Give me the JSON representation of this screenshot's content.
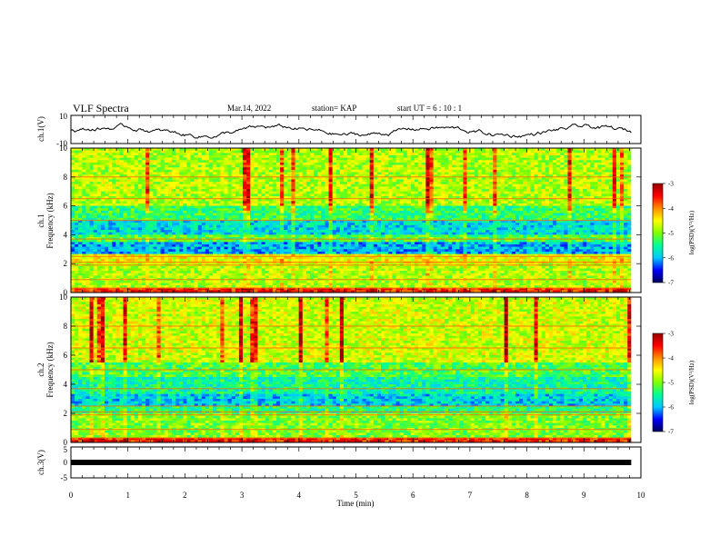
{
  "header": {
    "title": "VLF Spectra",
    "date": "Mar.14, 2022",
    "station": "station= KAP",
    "start_ut": "start  UT =   6  : 10 : 1"
  },
  "colors": {
    "colormap": [
      "#00005a",
      "#0000ff",
      "#00c8ff",
      "#00ff96",
      "#7dff00",
      "#ffff00",
      "#ff8c00",
      "#ff0000",
      "#960000"
    ],
    "trace": "#000000"
  },
  "chart_data": [
    {
      "type": "line",
      "name": "waveform-ch1",
      "ylabel": "ch.1(V)",
      "ylim": [
        -10,
        10
      ],
      "yticks": [
        "10",
        "-10"
      ],
      "xlim": [
        0,
        10
      ],
      "x_end": 9.83,
      "description_values": "noisy waveform oscillating roughly between -6 and +4 V"
    },
    {
      "type": "heatmap",
      "name": "spectrogram-ch1",
      "ylabel": "ch.1\nFrequency (kHz)",
      "ylabel_lines": [
        "ch.1",
        "Frequency (kHz)"
      ],
      "ylim": [
        0,
        10
      ],
      "yticks": [
        "0",
        "2",
        "4",
        "6",
        "8",
        "10"
      ],
      "xlim": [
        0,
        10
      ],
      "x_end": 9.83,
      "colorbar": {
        "label": "log(PSD)(V²/Hz)",
        "range": [
          -7,
          -3
        ],
        "ticks": [
          "-3",
          "-4",
          "-5",
          "-6",
          "-7"
        ]
      }
    },
    {
      "type": "heatmap",
      "name": "spectrogram-ch2",
      "ylabel": "ch.2\nFrequency (kHz)",
      "ylabel_lines": [
        "ch.2",
        "Frequency (kHz)"
      ],
      "ylim": [
        0,
        10
      ],
      "yticks": [
        "0",
        "2",
        "4",
        "6",
        "8",
        "10"
      ],
      "xlim": [
        0,
        10
      ],
      "x_end": 9.83,
      "colorbar": {
        "label": "log(PSD)(V²/Hz)",
        "range": [
          -7,
          -3
        ],
        "ticks": [
          "-3",
          "-4",
          "-5",
          "-6",
          "-7"
        ]
      }
    },
    {
      "type": "line",
      "name": "waveform-ch3",
      "ylabel": "ch.3(V)",
      "ylim": [
        -5,
        5
      ],
      "yticks": [
        "5",
        "0",
        "-5"
      ],
      "xlim": [
        0,
        10
      ],
      "x_end": 9.83,
      "values_constant": 0
    }
  ],
  "xaxis": {
    "label": "Time  (min)",
    "ticks": [
      "0",
      "1",
      "2",
      "3",
      "4",
      "5",
      "6",
      "7",
      "8",
      "9",
      "10"
    ]
  }
}
